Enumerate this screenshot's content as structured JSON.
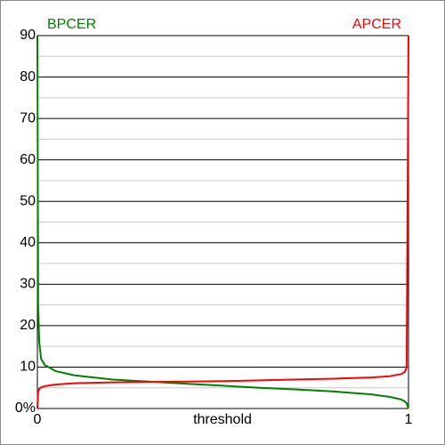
{
  "chart_data": {
    "type": "line",
    "x_label": "threshold",
    "x": [
      0,
      0.002,
      0.005,
      0.01,
      0.02,
      0.05,
      0.1,
      0.2,
      0.3,
      0.4,
      0.5,
      0.6,
      0.7,
      0.8,
      0.9,
      0.95,
      0.98,
      0.99,
      0.995,
      1
    ],
    "series": [
      {
        "name": "BPCER",
        "color": "#008000",
        "legend": "top-left",
        "values": [
          90,
          25,
          16,
          12,
          10.5,
          9,
          8,
          7,
          6.5,
          6,
          5.5,
          5,
          4.6,
          4.1,
          3.4,
          2.8,
          2.2,
          1.7,
          1.3,
          0
        ]
      },
      {
        "name": "APCER",
        "color": "#ff0000",
        "legend": "top-right",
        "values": [
          0,
          4,
          4.8,
          5.1,
          5.4,
          5.8,
          6.1,
          6.3,
          6.4,
          6.5,
          6.6,
          6.8,
          7,
          7.2,
          7.5,
          7.8,
          8.3,
          8.8,
          10,
          90
        ]
      }
    ],
    "xlim": [
      0,
      1
    ],
    "xticks": [
      0,
      1
    ],
    "ylim": [
      0,
      90
    ],
    "yticks": [
      {
        "value": 0,
        "label": "0%"
      },
      10,
      20,
      30,
      40,
      50,
      60,
      70,
      80,
      90
    ],
    "minor_yticks": [
      5,
      15,
      25,
      35,
      45,
      55,
      65,
      75,
      85
    ],
    "grid": true
  }
}
